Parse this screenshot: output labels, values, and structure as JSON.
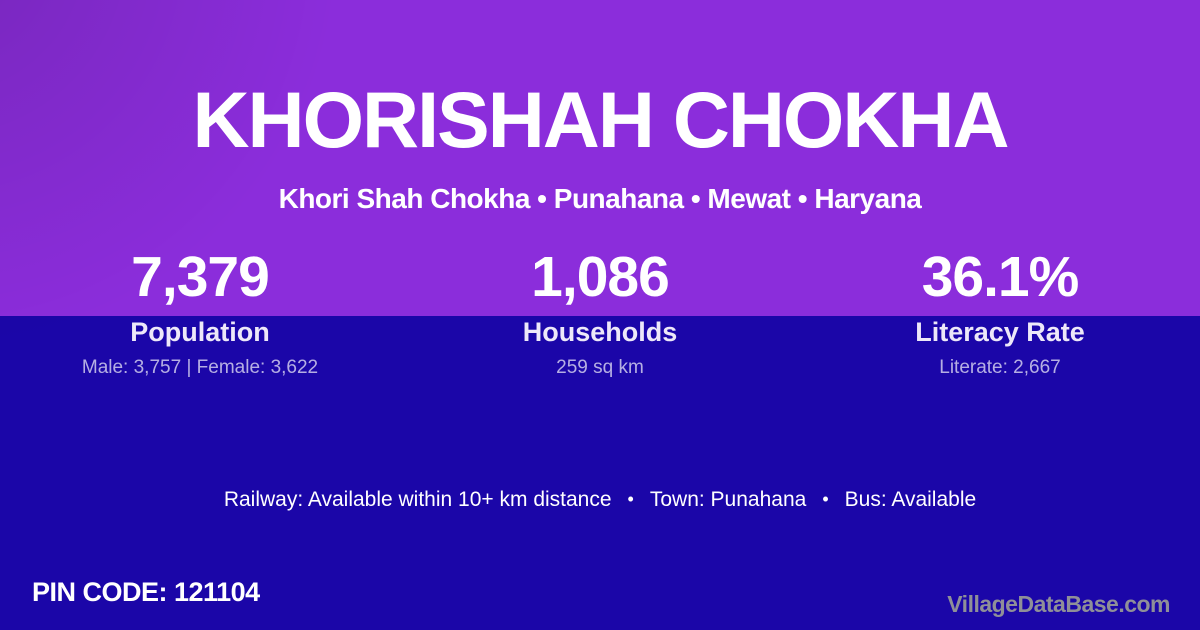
{
  "card": {
    "title": "KHORISHAH CHOKHA",
    "subtitle": "Khori Shah Chokha • Punahana • Mewat • Haryana"
  },
  "stats": [
    {
      "value": "7,379",
      "label": "Population",
      "detail": "Male: 3,757 | Female: 3,622"
    },
    {
      "value": "1,086",
      "label": "Households",
      "detail": "259 sq km"
    },
    {
      "value": "36.1%",
      "label": "Literacy Rate",
      "detail": "Literate: 2,667"
    }
  ],
  "info": {
    "items": [
      "Railway: Available within 10+ km distance",
      "Town: Punahana",
      "Bus: Available"
    ],
    "separator": "•"
  },
  "footer": {
    "pin_code": "PIN CODE: 121104",
    "brand": "VillageDataBase.com"
  },
  "colors": {
    "top_background": "#8B2DDB",
    "bottom_background": "#1B06A8",
    "text_primary": "#FFFFFF",
    "text_muted": "rgba(255,255,255,0.68)",
    "brand_text": "#8F8F98"
  }
}
